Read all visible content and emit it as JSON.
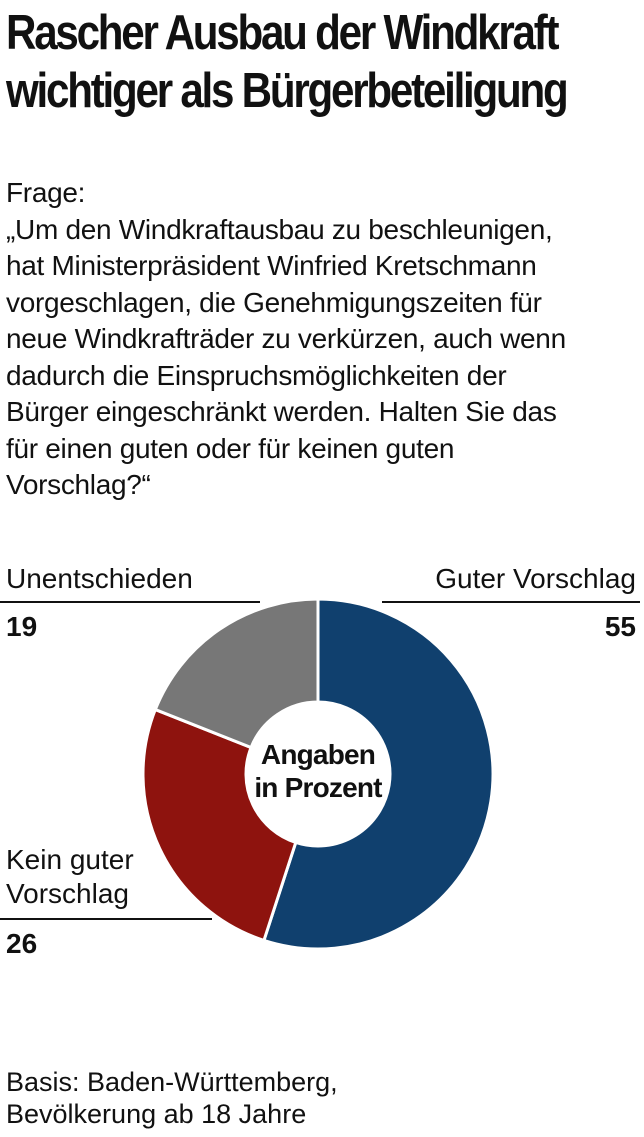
{
  "title_lines": [
    "Rascher Ausbau der Windkraft",
    "wichtiger als Bürgerbeteiligung"
  ],
  "question": {
    "label": "Frage:",
    "lines": [
      "„Um den Windkraftausbau zu beschleunigen,",
      "hat Ministerpräsident Winfried Kretschmann",
      "vorgeschlagen, die Genehmigungszeiten für",
      "neue Windkrafträder zu verkürzen, auch wenn",
      "dadurch die Einspruchsmöglichkeiten der",
      "Bürger eingeschränkt werden. Halten Sie das",
      "für einen guten oder für keinen guten",
      "Vorschlag?“"
    ]
  },
  "chart_data": {
    "type": "pie",
    "variant": "donut",
    "center_label_lines": [
      "Angaben",
      "in Prozent"
    ],
    "slices": [
      {
        "label_lines": [
          "Guter Vorschlag"
        ],
        "value": 55,
        "color": "#10406e"
      },
      {
        "label_lines": [
          "Kein guter",
          "Vorschlag"
        ],
        "value": 26,
        "color": "#8e130e"
      },
      {
        "label_lines": [
          "Unentschieden"
        ],
        "value": 19,
        "color": "#777777"
      }
    ],
    "start": "top",
    "direction": "clockwise"
  },
  "source_lines": [
    "Basis: Baden-Württemberg,",
    "Bevölkerung ab 18 Jahre"
  ]
}
